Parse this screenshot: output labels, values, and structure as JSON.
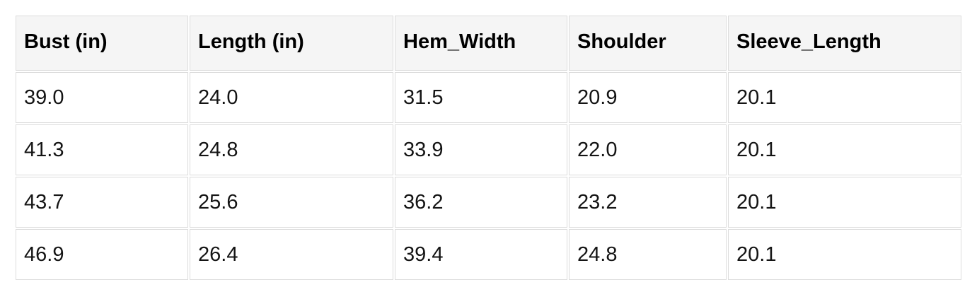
{
  "theme": {
    "header_bg": "#f5f5f5",
    "border_color": "#dcdcdc",
    "header_text_color": "#000000",
    "cell_text_color": "#141414",
    "page_bg": "#ffffff"
  },
  "table": {
    "columns": [
      "Bust (in)",
      "Length (in)",
      "Hem_Width",
      "Shoulder",
      "Sleeve_Length"
    ],
    "rows": [
      [
        "39.0",
        "24.0",
        "31.5",
        "20.9",
        "20.1"
      ],
      [
        "41.3",
        "24.8",
        "33.9",
        "22.0",
        "20.1"
      ],
      [
        "43.7",
        "25.6",
        "36.2",
        "23.2",
        "20.1"
      ],
      [
        "46.9",
        "26.4",
        "39.4",
        "24.8",
        "20.1"
      ]
    ]
  },
  "chart_data": {
    "type": "table",
    "categories": [
      "Bust (in)",
      "Length (in)",
      "Hem_Width",
      "Shoulder",
      "Sleeve_Length"
    ],
    "series": [
      {
        "name": "Bust (in)",
        "values": [
          39.0,
          41.3,
          43.7,
          46.9
        ]
      },
      {
        "name": "Length (in)",
        "values": [
          24.0,
          24.8,
          25.6,
          26.4
        ]
      },
      {
        "name": "Hem_Width",
        "values": [
          31.5,
          33.9,
          36.2,
          39.4
        ]
      },
      {
        "name": "Shoulder",
        "values": [
          20.9,
          22.0,
          23.2,
          24.8
        ]
      },
      {
        "name": "Sleeve_Length",
        "values": [
          20.1,
          20.1,
          20.1,
          20.1
        ]
      }
    ]
  }
}
